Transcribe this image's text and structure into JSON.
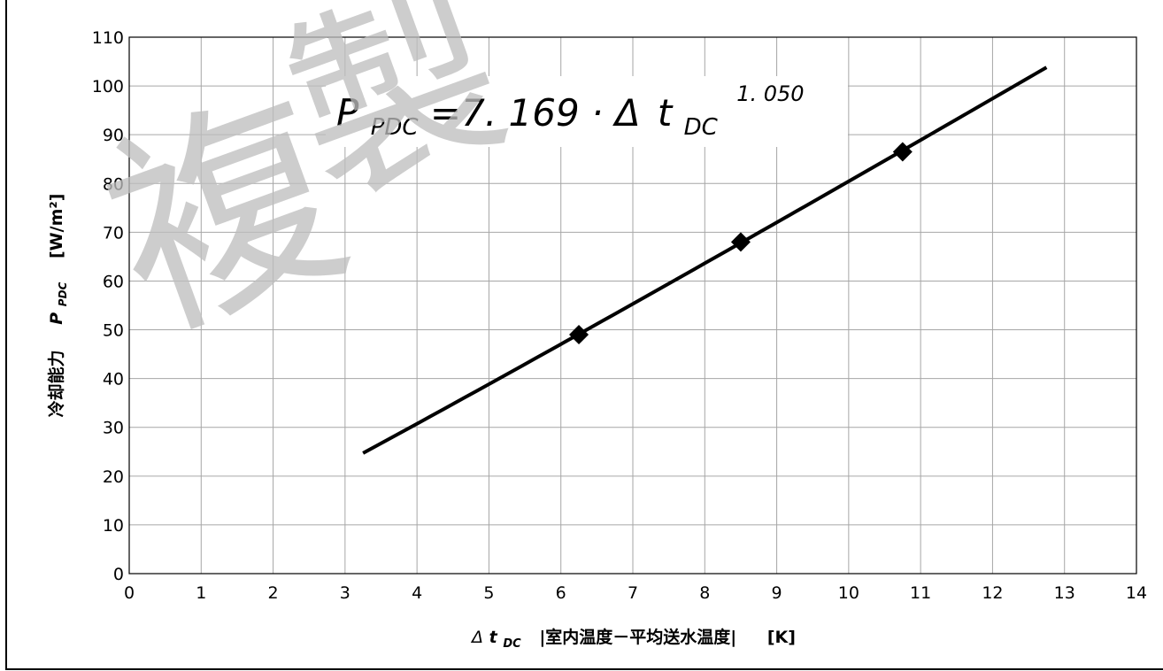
{
  "chart_data": {
    "type": "scatter",
    "x_ticks": [
      "0",
      "1",
      "2",
      "3",
      "4",
      "5",
      "6",
      "7",
      "8",
      "9",
      "10",
      "11",
      "12",
      "13",
      "14"
    ],
    "y_ticks": [
      "0",
      "10",
      "20",
      "30",
      "40",
      "50",
      "60",
      "70",
      "80",
      "90",
      "100",
      "110"
    ],
    "xlim": [
      0,
      14
    ],
    "ylim": [
      0,
      110
    ],
    "grid": true,
    "xlabel": {
      "prefix": "Δ",
      "var": "t",
      "sub": "DC",
      "text": "|室内温度－平均送水温度|",
      "unit": "[K]"
    },
    "ylabel": {
      "text": "冷却能力",
      "var": "P",
      "sub": "PDC",
      "unit": "[W/m²]"
    },
    "points": [
      {
        "x": 6.25,
        "y": 49
      },
      {
        "x": 8.5,
        "y": 68
      },
      {
        "x": 10.75,
        "y": 86.5
      }
    ],
    "fit": {
      "a": 7.169,
      "b": 1.05,
      "x_range": [
        3.25,
        12.75
      ],
      "equation": {
        "lhs": "P",
        "lhs_sub": "PDC",
        "mid": "=7. 169 · Δ",
        "var": "t",
        "var_sub": "DC",
        "exp": "1. 050"
      }
    },
    "marker_color": "#000000",
    "line_color": "#000000",
    "grid_color": "#a6a6a6"
  },
  "watermark": "複製"
}
